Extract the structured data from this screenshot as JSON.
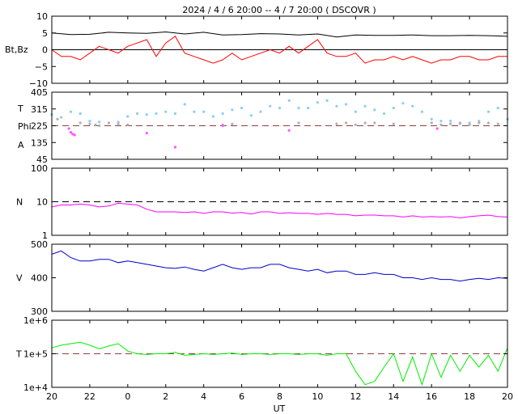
{
  "title": "2024 /  4 /  6   20:00 --  4 /  7   20:00 ( DSCOVR )",
  "xlabel": "UT",
  "x_ticks": [
    "20",
    "22",
    "0",
    "2",
    "4",
    "6",
    "8",
    "10",
    "12",
    "14",
    "16",
    "18",
    "20"
  ],
  "colors": {
    "bt": "#000000",
    "bz": "#ff0000",
    "theta": "#87cefa",
    "phi_gray": "#b0b0b0",
    "phi_magenta": "#ff55ff",
    "density": "#ff00ff",
    "speed": "#0000cc",
    "temperature": "#00ee00",
    "ref_red": "#c00000",
    "ref_brown": "#8b4040"
  },
  "chart_data": [
    {
      "type": "line",
      "ylabel": "Bt,Bz",
      "y_ticks": [
        "10",
        "5",
        "0",
        "−5",
        "−10"
      ],
      "ylim": [
        -10,
        10
      ],
      "reference_line": 0,
      "series": [
        {
          "key": "Bt",
          "x": [
            0,
            1,
            2,
            3,
            4,
            5,
            6,
            7,
            8,
            9,
            10,
            11,
            12,
            13,
            14,
            15,
            16,
            17,
            18,
            19,
            20,
            21,
            22,
            23,
            24
          ],
          "values": [
            5,
            4.5,
            4.6,
            5.2,
            5,
            4.9,
            5.3,
            4.7,
            5.2,
            4.4,
            4.5,
            4.8,
            4.7,
            4.4,
            4.7,
            3.8,
            4.4,
            4.3,
            4.3,
            4.4,
            4.2,
            4.2,
            4.3,
            4.2,
            4
          ]
        },
        {
          "key": "Bz",
          "x": [
            0,
            0.5,
            1,
            1.5,
            2,
            2.5,
            3,
            3.5,
            4,
            4.5,
            5,
            5.5,
            6,
            6.5,
            7,
            7.5,
            8,
            8.5,
            9,
            9.5,
            10,
            10.5,
            11,
            11.5,
            12,
            12.5,
            13,
            13.5,
            14,
            14.5,
            15,
            15.5,
            16,
            16.5,
            17,
            17.5,
            18,
            18.5,
            19,
            19.5,
            20,
            20.5,
            21,
            21.5,
            22,
            22.5,
            23,
            23.5,
            24
          ],
          "values": [
            0,
            -2,
            -2,
            -3,
            -1,
            1,
            0,
            -1,
            1,
            2,
            3,
            -2,
            2,
            4,
            -1,
            -2,
            -3,
            -4,
            -3,
            -1,
            -3,
            -2,
            -1,
            0,
            -1,
            1,
            -1,
            1,
            3,
            -1,
            -2,
            -2,
            -1,
            -4,
            -3,
            -3,
            -2,
            -3,
            -2,
            -3,
            -4,
            -3,
            -3,
            -2,
            -2,
            -3,
            -3,
            -2,
            -2
          ]
        }
      ]
    },
    {
      "type": "scatter",
      "ylabels": [
        "T",
        "Phi",
        "A"
      ],
      "y_ticks": [
        "405",
        "315",
        "225",
        "135",
        "45"
      ],
      "ylim": [
        45,
        405
      ],
      "reference_line": 225,
      "series": [
        {
          "key": "theta",
          "x": [
            0,
            0.5,
            1,
            1.5,
            2,
            2.5,
            3,
            3.5,
            4,
            4.5,
            5,
            5.5,
            6,
            6.5,
            7,
            7.5,
            8,
            8.5,
            9,
            9.5,
            10,
            10.5,
            11,
            11.5,
            12,
            12.5,
            13,
            13.5,
            14,
            14.5,
            15,
            15.5,
            16,
            16.5,
            17,
            17.5,
            18,
            18.5,
            19,
            19.5,
            20,
            20.5,
            21,
            21.5,
            22,
            22.5,
            23,
            23.5,
            24
          ],
          "values": [
            285,
            270,
            300,
            290,
            250,
            245,
            240,
            245,
            275,
            290,
            285,
            290,
            300,
            290,
            340,
            300,
            300,
            275,
            290,
            310,
            320,
            280,
            300,
            330,
            320,
            360,
            320,
            320,
            350,
            360,
            330,
            340,
            300,
            330,
            310,
            290,
            320,
            345,
            330,
            300,
            260,
            250,
            250,
            235,
            240,
            250,
            300,
            320,
            260
          ]
        },
        {
          "key": "phi_gray",
          "x": [
            0.3,
            1.5,
            2,
            2.3,
            2.5,
            3,
            3.5,
            4,
            9,
            9.5,
            13,
            15,
            15.5,
            16,
            16.5,
            17,
            18,
            20,
            20.5,
            21,
            21.5,
            22,
            22.5,
            23,
            23.5
          ],
          "values": [
            260,
            240,
            235,
            230,
            225,
            240,
            235,
            230,
            230,
            235,
            240,
            235,
            240,
            230,
            240,
            240,
            235,
            240,
            230,
            235,
            240,
            230,
            240,
            240,
            235
          ]
        },
        {
          "key": "phi_magenta",
          "x": [
            0.9,
            1,
            1.1,
            1.2,
            5,
            6.5,
            9,
            12.5,
            20.3
          ],
          "values": [
            210,
            190,
            180,
            175,
            185,
            110,
            225,
            200,
            210
          ]
        }
      ]
    },
    {
      "type": "line",
      "ylabel": "N",
      "y_ticks": [
        "100",
        "10",
        "1"
      ],
      "ylim": [
        1,
        100
      ],
      "log_scale": true,
      "reference_line": 10,
      "series": [
        {
          "key": "N",
          "x": [
            0,
            0.5,
            1,
            1.5,
            2,
            2.5,
            3,
            3.5,
            4,
            4.5,
            5,
            5.5,
            6,
            6.5,
            7,
            7.5,
            8,
            8.5,
            9,
            9.5,
            10,
            10.5,
            11,
            11.5,
            12,
            12.5,
            13,
            13.5,
            14,
            14.5,
            15,
            15.5,
            16,
            16.5,
            17,
            17.5,
            18,
            18.5,
            19,
            19.5,
            20,
            20.5,
            21,
            21.5,
            22,
            22.5,
            23,
            23.5,
            24
          ],
          "values": [
            7,
            8,
            8,
            8.5,
            8,
            7,
            7.5,
            9,
            8.5,
            8,
            6,
            5,
            5,
            5,
            4.8,
            5,
            4.5,
            5,
            5,
            4.6,
            4.8,
            4.3,
            5,
            5,
            4.5,
            4.7,
            4.5,
            4.5,
            4.2,
            4.5,
            4.2,
            4.2,
            3.8,
            4,
            4,
            3.8,
            3.8,
            3.5,
            3.8,
            3.5,
            3.6,
            3.5,
            3.6,
            3.3,
            3.6,
            3.8,
            4,
            3.6,
            3.5
          ]
        }
      ]
    },
    {
      "type": "line",
      "ylabel": "V",
      "y_ticks": [
        "500",
        "400",
        "300"
      ],
      "ylim": [
        300,
        500
      ],
      "series": [
        {
          "key": "V",
          "x": [
            0,
            0.5,
            1,
            1.5,
            2,
            2.5,
            3,
            3.5,
            4,
            4.5,
            5,
            5.5,
            6,
            6.5,
            7,
            7.5,
            8,
            8.5,
            9,
            9.5,
            10,
            10.5,
            11,
            11.5,
            12,
            12.5,
            13,
            13.5,
            14,
            14.5,
            15,
            15.5,
            16,
            16.5,
            17,
            17.5,
            18,
            18.5,
            19,
            19.5,
            20,
            20.5,
            21,
            21.5,
            22,
            22.5,
            23,
            23.5,
            24
          ],
          "values": [
            470,
            480,
            460,
            450,
            450,
            455,
            455,
            445,
            450,
            445,
            440,
            435,
            430,
            428,
            432,
            425,
            420,
            430,
            440,
            430,
            425,
            430,
            430,
            440,
            440,
            430,
            425,
            420,
            425,
            415,
            420,
            420,
            410,
            410,
            415,
            410,
            410,
            400,
            400,
            395,
            400,
            395,
            395,
            390,
            395,
            398,
            395,
            400,
            398
          ]
        }
      ]
    },
    {
      "type": "line",
      "ylabel": "T",
      "y_ticks": [
        "1e+6",
        "1e+5",
        "1e+4"
      ],
      "ylim": [
        10000,
        1000000
      ],
      "log_scale": true,
      "reference_line": 100000,
      "series": [
        {
          "key": "Tp",
          "x": [
            0,
            0.5,
            1,
            1.5,
            2,
            2.5,
            3,
            3.5,
            4,
            4.5,
            5,
            5.5,
            6,
            6.5,
            7,
            7.5,
            8,
            8.5,
            9,
            9.5,
            10,
            10.5,
            11,
            11.5,
            12,
            12.5,
            13,
            13.5,
            14,
            14.5,
            15,
            15.5,
            16,
            16.5,
            17,
            17.5,
            18,
            18.5,
            19,
            19.5,
            20,
            20.5,
            21,
            21.5,
            22,
            22.5,
            23,
            23.5,
            24
          ],
          "values": [
            150000,
            180000,
            200000,
            220000,
            180000,
            140000,
            170000,
            200000,
            120000,
            100000,
            95000,
            100000,
            100000,
            110000,
            90000,
            95000,
            100000,
            95000,
            100000,
            105000,
            95000,
            100000,
            100000,
            95000,
            100000,
            100000,
            95000,
            100000,
            100000,
            90000,
            100000,
            100000,
            30000,
            12000,
            15000,
            40000,
            100000,
            15000,
            80000,
            12000,
            100000,
            20000,
            90000,
            30000,
            90000,
            40000,
            90000,
            30000,
            150000
          ]
        }
      ]
    }
  ]
}
